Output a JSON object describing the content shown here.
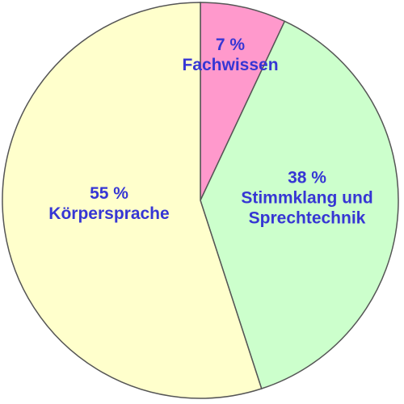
{
  "chart_data": {
    "type": "pie",
    "categories": [
      "Fachwissen",
      "Stimmklang und Sprechtechnik",
      "Körpersprache"
    ],
    "values": [
      7,
      38,
      55
    ],
    "value_labels": [
      "7 %",
      "38 %",
      "55 %"
    ],
    "colors": [
      "#ff99cc",
      "#ccffcc",
      "#ffffcc"
    ]
  }
}
